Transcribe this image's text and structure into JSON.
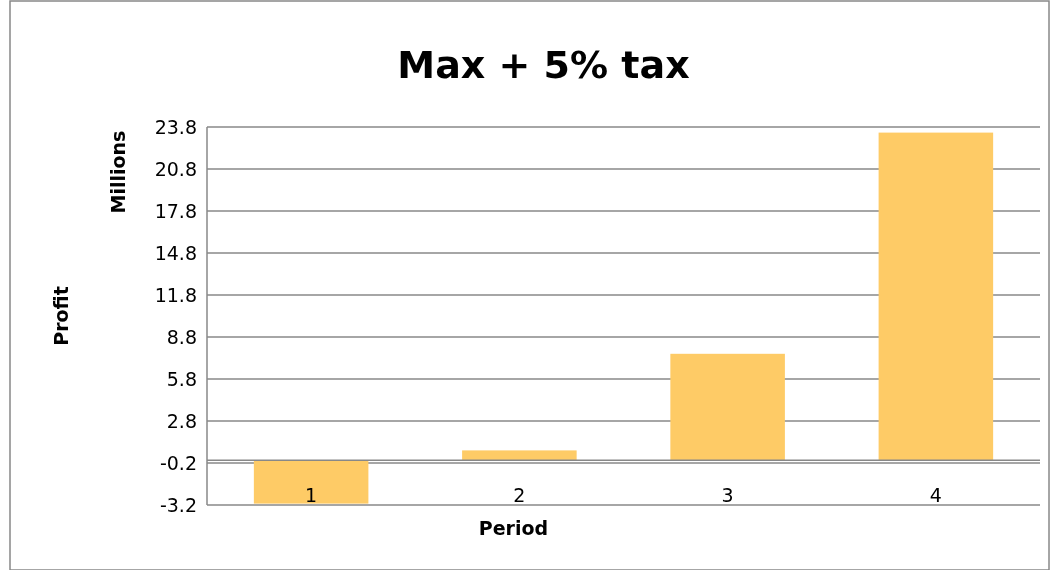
{
  "chart_data": {
    "type": "bar",
    "title": "Max + 5% tax",
    "xlabel": "Period",
    "ylabel": "Profit",
    "annotations": [
      "Millions"
    ],
    "categories": [
      "1",
      "2",
      "3",
      "4"
    ],
    "values": [
      -3.1,
      0.7,
      7.6,
      23.4
    ],
    "color": "#fecb66",
    "ylim": [
      -3.2,
      23.8
    ],
    "yticks": [
      -3.2,
      -0.2,
      2.8,
      5.8,
      8.8,
      11.8,
      14.8,
      17.8,
      20.8,
      23.8
    ],
    "grid": "y"
  }
}
